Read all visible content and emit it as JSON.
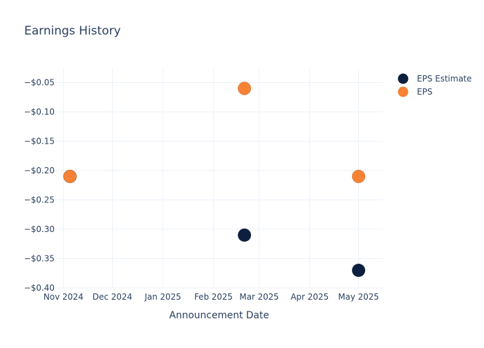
{
  "chart_data": {
    "type": "scatter",
    "title": "Earnings History",
    "xlabel": "Announcement Date",
    "ylabel": "",
    "x_ticks": [
      "Nov 2024",
      "Dec 2024",
      "Jan 2025",
      "Feb 2025",
      "Mar 2025",
      "Apr 2025",
      "May 2025"
    ],
    "y_ticks": [
      "−$0.05",
      "−$0.10",
      "−$0.15",
      "−$0.20",
      "−$0.25",
      "−$0.30",
      "−$0.35",
      "−$0.40"
    ],
    "y_tick_values": [
      -0.05,
      -0.1,
      -0.15,
      -0.2,
      -0.25,
      -0.3,
      -0.35,
      -0.4
    ],
    "xlim": [
      "2024-10-27",
      "2025-05-16"
    ],
    "ylim": [
      -0.4,
      -0.027
    ],
    "grid": true,
    "legend_position": "top-right",
    "series": [
      {
        "name": "EPS Estimate",
        "color": "#0d1f3f",
        "points": [
          {
            "x": "2024-11-05",
            "y": -0.21
          },
          {
            "x": "2025-02-20",
            "y": -0.31
          },
          {
            "x": "2025-05-01",
            "y": -0.37
          }
        ]
      },
      {
        "name": "EPS",
        "color": "#f58235",
        "points": [
          {
            "x": "2024-11-05",
            "y": -0.21
          },
          {
            "x": "2025-02-20",
            "y": -0.06
          },
          {
            "x": "2025-05-01",
            "y": -0.21
          }
        ]
      }
    ]
  }
}
